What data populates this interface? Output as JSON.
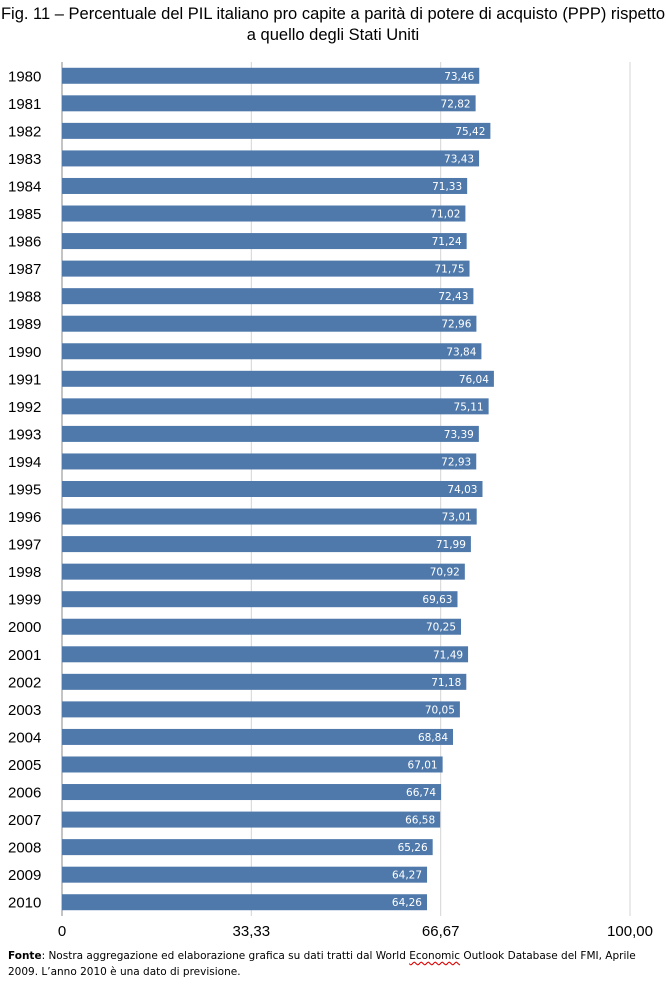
{
  "title": "Fig. 11 – Percentuale del PIL italiano pro capite a parità di potere di acquisto (PPP) rispetto a quello degli Stati Uniti",
  "source": {
    "label": "Fonte",
    "text_before": ": Nostra aggregazione ed elaborazione grafica su dati tratti dal World ",
    "text_marked": "Economic",
    "text_after": " Outlook Database del FMI, Aprile 2009. L’anno 2010 è una dato di previsione."
  },
  "chart_data": {
    "type": "bar",
    "orientation": "horizontal",
    "title": "Fig. 11 – Percentuale del PIL italiano pro capite a parità di potere di acquisto (PPP) rispetto a quello degli Stati Uniti",
    "xlabel": "",
    "ylabel": "",
    "xlim": [
      0,
      100
    ],
    "x_ticks": [
      0,
      33.33,
      66.67,
      100
    ],
    "x_tick_labels": [
      "0",
      "33,33",
      "66,67",
      "100,00"
    ],
    "grid": "vertical",
    "bar_color": "#4f79ab",
    "categories": [
      "1980",
      "1981",
      "1982",
      "1983",
      "1984",
      "1985",
      "1986",
      "1987",
      "1988",
      "1989",
      "1990",
      "1991",
      "1992",
      "1993",
      "1994",
      "1995",
      "1996",
      "1997",
      "1998",
      "1999",
      "2000",
      "2001",
      "2002",
      "2003",
      "2004",
      "2005",
      "2006",
      "2007",
      "2008",
      "2009",
      "2010"
    ],
    "values": [
      73.46,
      72.82,
      75.42,
      73.43,
      71.33,
      71.02,
      71.24,
      71.75,
      72.43,
      72.96,
      73.84,
      76.04,
      75.11,
      73.39,
      72.93,
      74.03,
      73.01,
      71.99,
      70.92,
      69.63,
      70.25,
      71.49,
      71.18,
      70.05,
      68.84,
      67.01,
      66.74,
      66.58,
      65.26,
      64.27,
      64.26
    ],
    "value_labels": [
      "73,46",
      "72,82",
      "75,42",
      "73,43",
      "71,33",
      "71,02",
      "71,24",
      "71,75",
      "72,43",
      "72,96",
      "73,84",
      "76,04",
      "75,11",
      "73,39",
      "72,93",
      "74,03",
      "73,01",
      "71,99",
      "70,92",
      "69,63",
      "70,25",
      "71,49",
      "71,18",
      "70,05",
      "68,84",
      "67,01",
      "66,74",
      "66,58",
      "65,26",
      "64,27",
      "64,26"
    ]
  }
}
